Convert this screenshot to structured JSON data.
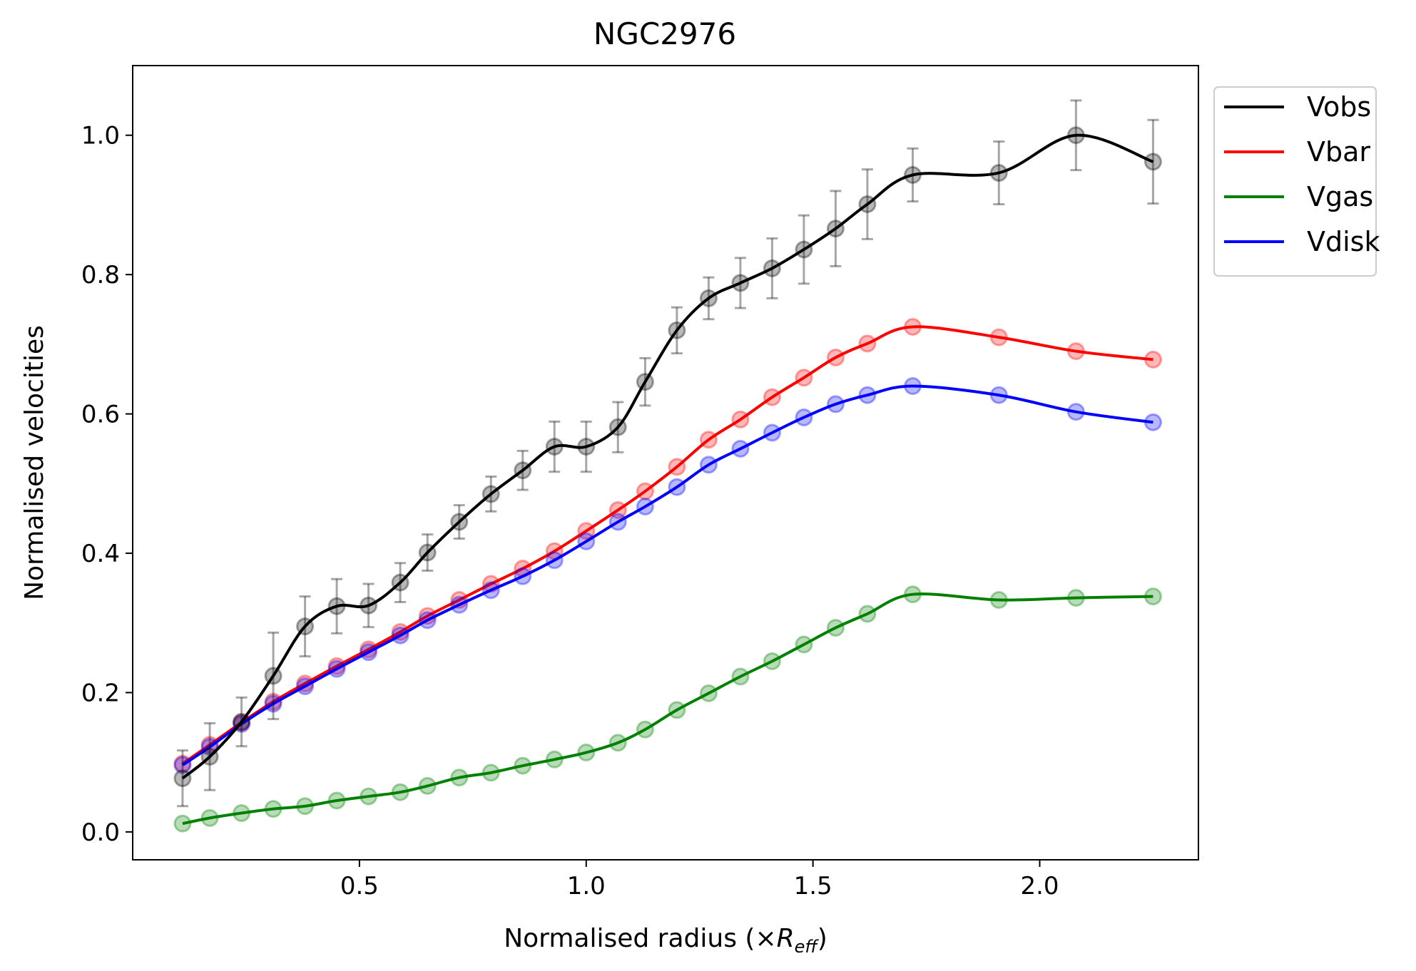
{
  "chart_data": {
    "type": "line",
    "title": "NGC2976",
    "xlabel_prefix": "Normalised radius (×",
    "xlabel_symbol": "R",
    "xlabel_subscript": "eff",
    "xlabel_suffix": ")",
    "ylabel": "Normalised velocities",
    "xlim": [
      -0.0,
      2.35
    ],
    "ylim": [
      -0.04,
      1.1
    ],
    "xticks": [
      0.5,
      1.0,
      1.5,
      2.0
    ],
    "xtick_labels": [
      "0.5",
      "1.0",
      "1.5",
      "2.0"
    ],
    "yticks": [
      0.0,
      0.2,
      0.4,
      0.6,
      0.8,
      1.0
    ],
    "ytick_labels": [
      "0.0",
      "0.2",
      "0.4",
      "0.6",
      "0.8",
      "1.0"
    ],
    "grid": false,
    "legend_position": "outside-top-right",
    "x": [
      0.11,
      0.17,
      0.24,
      0.31,
      0.38,
      0.45,
      0.52,
      0.59,
      0.65,
      0.72,
      0.79,
      0.86,
      0.93,
      1.0,
      1.07,
      1.13,
      1.2,
      1.27,
      1.34,
      1.41,
      1.48,
      1.55,
      1.62,
      1.72,
      1.91,
      2.08,
      2.25
    ],
    "series": [
      {
        "name": "Vobs",
        "color": "#000000",
        "values": [
          0.077,
          0.108,
          0.158,
          0.224,
          0.295,
          0.324,
          0.325,
          0.358,
          0.401,
          0.445,
          0.485,
          0.519,
          0.553,
          0.553,
          0.581,
          0.646,
          0.72,
          0.766,
          0.788,
          0.809,
          0.836,
          0.866,
          0.901,
          0.943,
          0.946,
          1.0,
          0.962
        ],
        "errors": [
          0.04,
          0.048,
          0.035,
          0.062,
          0.043,
          0.039,
          0.031,
          0.028,
          0.026,
          0.024,
          0.025,
          0.028,
          0.036,
          0.036,
          0.036,
          0.034,
          0.033,
          0.03,
          0.036,
          0.043,
          0.049,
          0.054,
          0.05,
          0.038,
          0.045,
          0.05,
          0.06
        ]
      },
      {
        "name": "Vbar",
        "color": "#ff0000",
        "values": [
          0.098,
          0.125,
          0.157,
          0.187,
          0.213,
          0.238,
          0.262,
          0.287,
          0.31,
          0.333,
          0.356,
          0.378,
          0.403,
          0.432,
          0.462,
          0.489,
          0.524,
          0.563,
          0.592,
          0.624,
          0.652,
          0.681,
          0.701,
          0.725,
          0.71,
          0.69,
          0.678
        ],
        "errors": []
      },
      {
        "name": "Vgas",
        "color": "#008000",
        "values": [
          0.012,
          0.02,
          0.027,
          0.033,
          0.037,
          0.045,
          0.051,
          0.057,
          0.066,
          0.078,
          0.085,
          0.095,
          0.104,
          0.114,
          0.128,
          0.147,
          0.175,
          0.199,
          0.223,
          0.245,
          0.269,
          0.293,
          0.313,
          0.341,
          0.333,
          0.336,
          0.338
        ],
        "errors": []
      },
      {
        "name": "Vdisk",
        "color": "#0000ff",
        "values": [
          0.096,
          0.122,
          0.155,
          0.184,
          0.209,
          0.234,
          0.258,
          0.282,
          0.304,
          0.326,
          0.347,
          0.367,
          0.39,
          0.417,
          0.445,
          0.467,
          0.495,
          0.527,
          0.55,
          0.573,
          0.595,
          0.614,
          0.627,
          0.64,
          0.627,
          0.603,
          0.588
        ],
        "errors": []
      }
    ]
  }
}
